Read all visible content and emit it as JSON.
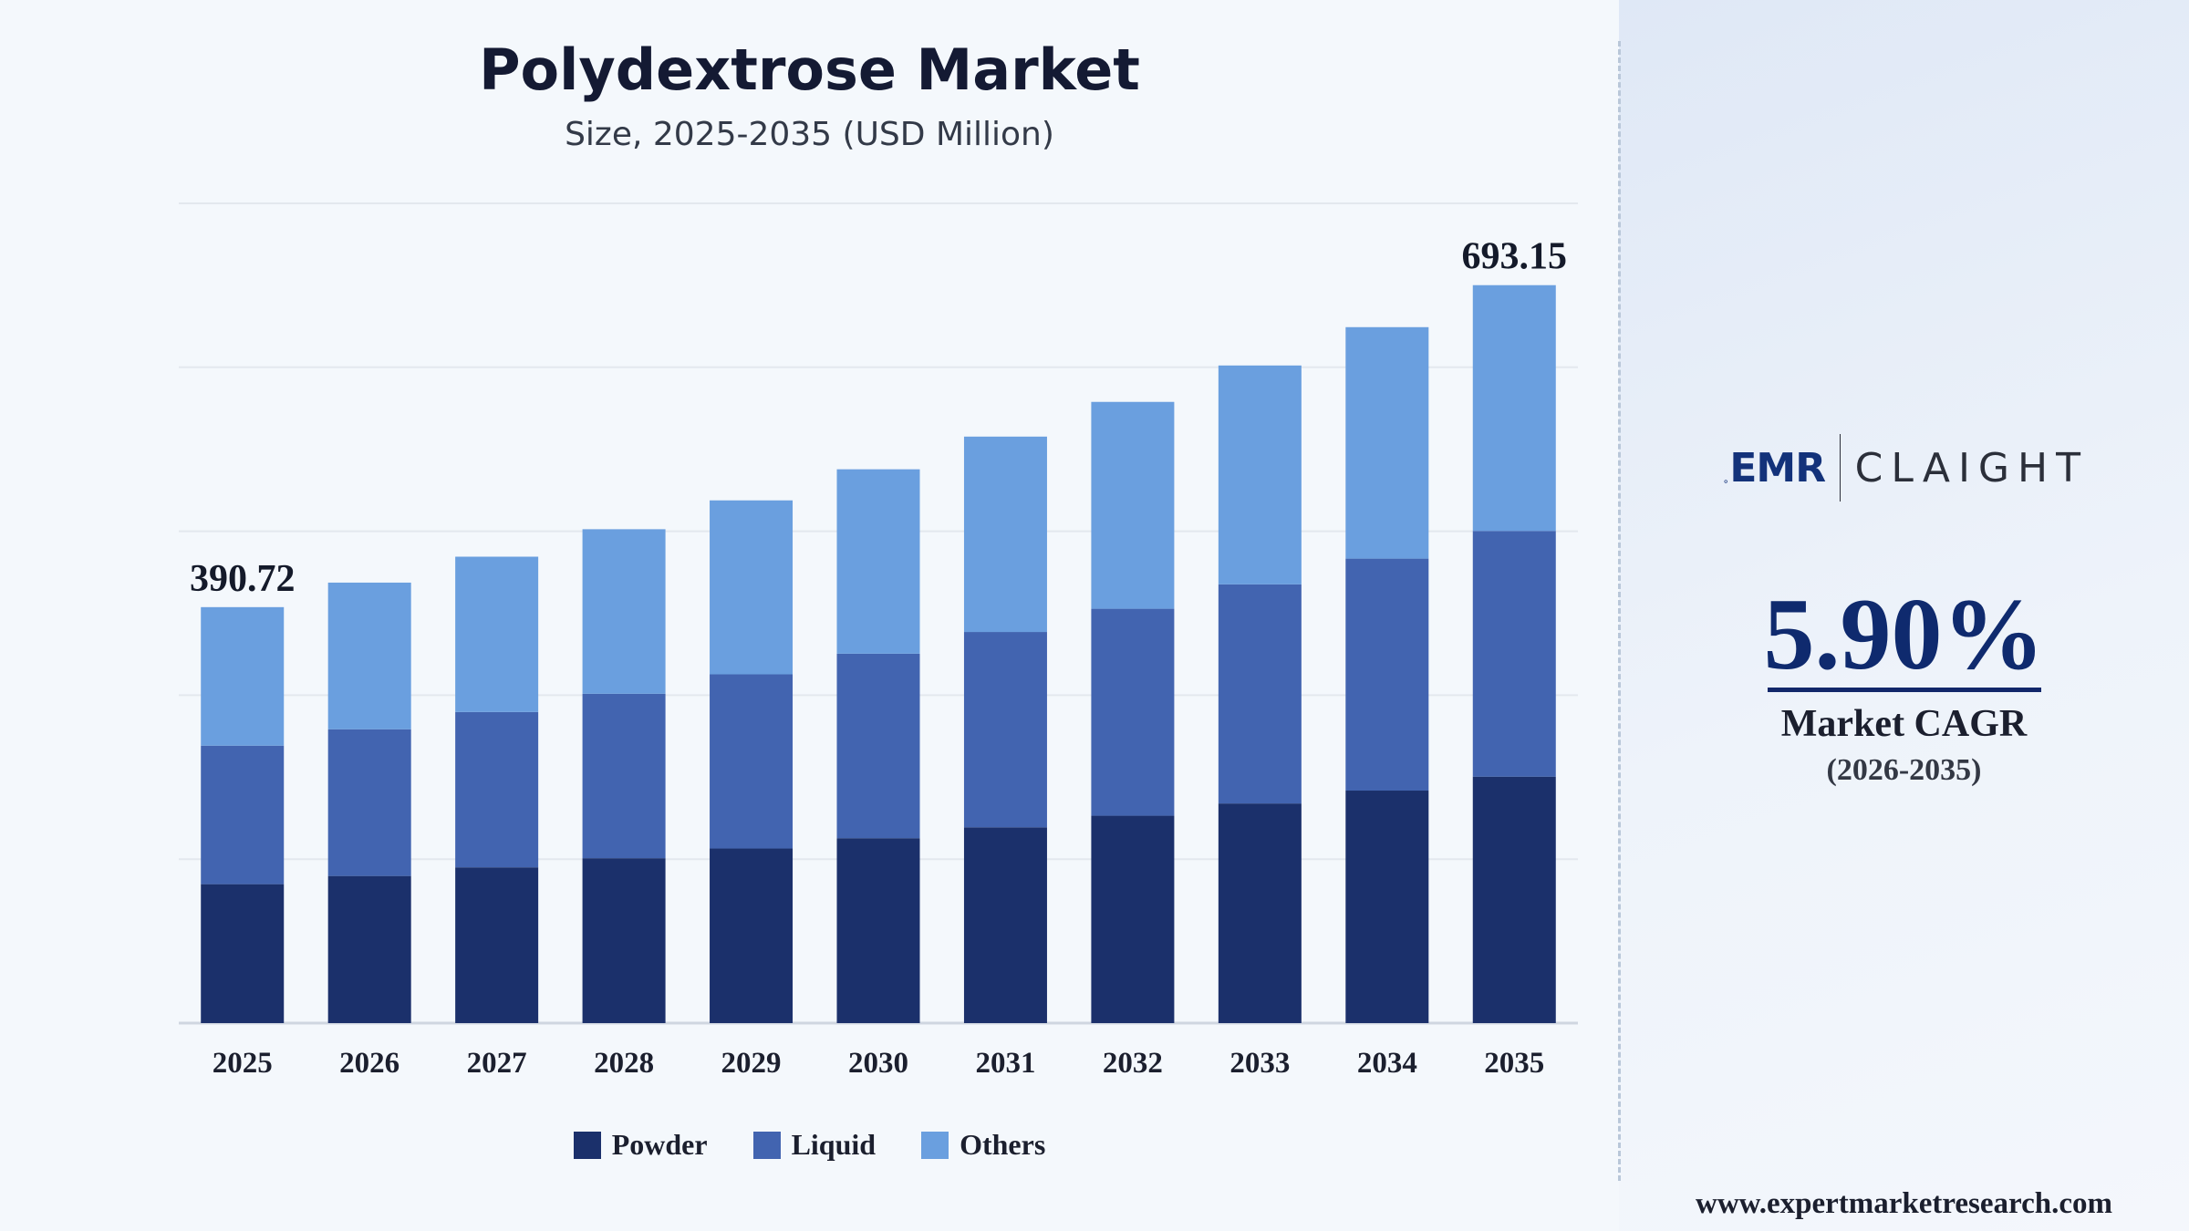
{
  "chart_data": {
    "type": "bar",
    "stacked": true,
    "title": "Polydextrose Market",
    "subtitle": "Size, 2025-2035 (USD Million)",
    "categories": [
      "2025",
      "2026",
      "2027",
      "2028",
      "2029",
      "2030",
      "2031",
      "2032",
      "2033",
      "2034",
      "2035"
    ],
    "series": [
      {
        "name": "Powder",
        "color": "#1b306b",
        "values": [
          130.5,
          138.2,
          146.3,
          154.9,
          164.0,
          173.7,
          183.9,
          194.8,
          206.3,
          218.4,
          231.5
        ]
      },
      {
        "name": "Liquid",
        "color": "#4264b0",
        "values": [
          130.1,
          137.8,
          145.9,
          154.5,
          163.6,
          173.3,
          183.5,
          194.4,
          205.8,
          217.9,
          230.8
        ]
      },
      {
        "name": "Others",
        "color": "#6a9fdf",
        "values": [
          130.12,
          137.75,
          145.9,
          154.5,
          163.4,
          173.2,
          183.5,
          194.3,
          205.6,
          217.4,
          230.85
        ]
      }
    ],
    "total_labels": [
      {
        "index": 0,
        "text": "390.72"
      },
      {
        "index": 10,
        "text": "693.15"
      }
    ],
    "ylim": [
      0,
      770
    ],
    "grid": true,
    "legend_position": "bottom"
  },
  "cagr": {
    "value": "5.90%",
    "label": "Market CAGR",
    "period": "(2026-2035)"
  },
  "logo": {
    "left": "EMR",
    "right": "CLAIGHT"
  },
  "website": "www.expertmarketresearch.com"
}
